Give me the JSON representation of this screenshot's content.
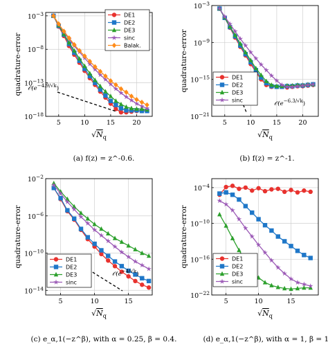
{
  "chart_data": [
    {
      "type": "line",
      "caption": "(a) f(z) = z^-0.6.",
      "xlabel": "√N_q",
      "ylabel": "quadrature-error",
      "log_y": true,
      "xlim": [
        2.5,
        23
      ],
      "ylim_exp": [
        -18,
        -2.5
      ],
      "xticks": [
        "5",
        "10",
        "15",
        "20"
      ],
      "yticks": [
        "10^-3",
        "10^-8",
        "10^-13",
        "10^-18"
      ],
      "legend": "top-right",
      "annotation": "O(e^-4.9/√k)",
      "series": [
        {
          "name": "DE1",
          "color": "#e8322e",
          "marker": "circle",
          "x": [
            4,
            5,
            6,
            7,
            8,
            9,
            10,
            11,
            12,
            13,
            14,
            15,
            16,
            17,
            18,
            19,
            20,
            21,
            22
          ],
          "y_exp": [
            -3,
            -4.6,
            -6,
            -7.5,
            -8.8,
            -10,
            -11.2,
            -12.3,
            -13.3,
            -14.3,
            -15.2,
            -16.1,
            -16.9,
            -17.4,
            -17.4,
            -17.3,
            -17.2,
            -17.2,
            -17.1
          ]
        },
        {
          "name": "DE2",
          "color": "#1f77c8",
          "marker": "square",
          "x": [
            4,
            5,
            6,
            7,
            8,
            9,
            10,
            11,
            12,
            13,
            14,
            15,
            16,
            17,
            18,
            19,
            20,
            21,
            22
          ],
          "y_exp": [
            -3,
            -4.5,
            -5.8,
            -7.2,
            -8.5,
            -9.7,
            -10.9,
            -12,
            -13,
            -14,
            -14.9,
            -15.7,
            -16.3,
            -16.8,
            -17.1,
            -17.1,
            -17.1,
            -17.2,
            -17.2
          ]
        },
        {
          "name": "DE3",
          "color": "#2ca02c",
          "marker": "triangle",
          "x": [
            4,
            5,
            6,
            7,
            8,
            9,
            10,
            11,
            12,
            13,
            14,
            15,
            16,
            17,
            18,
            19,
            20,
            21,
            22
          ],
          "y_exp": [
            -3,
            -4.4,
            -5.7,
            -7,
            -8.2,
            -9.4,
            -10.5,
            -11.6,
            -12.6,
            -13.5,
            -14.3,
            -15,
            -15.7,
            -16.2,
            -16.6,
            -16.8,
            -16.9,
            -16.9,
            -17
          ]
        },
        {
          "name": "sinc",
          "color": "#9b59b6",
          "marker": "star",
          "x": [
            4,
            5,
            6,
            7,
            8,
            9,
            10,
            11,
            12,
            13,
            14,
            15,
            16,
            17,
            18,
            19,
            20,
            21,
            22
          ],
          "y_exp": [
            -3,
            -4.3,
            -5.4,
            -6.5,
            -7.5,
            -8.4,
            -9.3,
            -10.2,
            -11,
            -11.8,
            -12.5,
            -13.2,
            -13.9,
            -14.5,
            -15.1,
            -15.6,
            -16.1,
            -16.5,
            -16.8
          ]
        },
        {
          "name": "Balak.",
          "color": "#ff8c1a",
          "marker": "diamond",
          "x": [
            4,
            5,
            6,
            7,
            8,
            9,
            10,
            11,
            12,
            13,
            14,
            15,
            16,
            17,
            18,
            19,
            20,
            21,
            22
          ],
          "y_exp": [
            -3,
            -4.2,
            -5.3,
            -6.3,
            -7.3,
            -8.2,
            -9,
            -9.8,
            -10.6,
            -11.3,
            -12,
            -12.7,
            -13.3,
            -13.9,
            -14.4,
            -15,
            -15.5,
            -15.9,
            -16.3
          ]
        }
      ]
    },
    {
      "type": "line",
      "caption": "(b) f(z) = z^-1.",
      "xlabel": "√N_q",
      "ylabel": "quadrature-error",
      "log_y": true,
      "xlim": [
        2.5,
        23
      ],
      "ylim_exp": [
        -21,
        -3
      ],
      "xticks": [
        "5",
        "10",
        "15",
        "20"
      ],
      "yticks": [
        "10^-3",
        "10^-9",
        "10^-15",
        "10^-21"
      ],
      "legend": "bottom-left",
      "annotation": "O(e^-6.3/√k)",
      "series": [
        {
          "name": "DE1",
          "color": "#e8322e",
          "marker": "circle",
          "x": [
            4,
            5,
            6,
            7,
            8,
            9,
            10,
            11,
            12,
            13,
            14,
            15,
            16,
            17,
            18,
            19,
            20,
            21,
            22
          ],
          "y_exp": [
            -3.5,
            -5,
            -6.6,
            -8.2,
            -9.7,
            -11.1,
            -12.5,
            -13.8,
            -15,
            -15.9,
            -16.2,
            -16.2,
            -16.2,
            -16.3,
            -16.2,
            -16.1,
            -16.1,
            -16,
            -15.9
          ]
        },
        {
          "name": "DE2",
          "color": "#1f77c8",
          "marker": "square",
          "x": [
            4,
            5,
            6,
            7,
            8,
            9,
            10,
            11,
            12,
            13,
            14,
            15,
            16,
            17,
            18,
            19,
            20,
            21,
            22
          ],
          "y_exp": [
            -3.5,
            -5,
            -6.5,
            -8,
            -9.5,
            -10.9,
            -12.2,
            -13.5,
            -14.7,
            -15.6,
            -16.1,
            -16.2,
            -16.2,
            -16.1,
            -16.1,
            -16,
            -16,
            -15.9,
            -15.8
          ]
        },
        {
          "name": "DE3",
          "color": "#2ca02c",
          "marker": "triangle",
          "x": [
            4,
            5,
            6,
            7,
            8,
            9,
            10,
            11,
            12,
            13,
            14,
            15,
            16,
            17,
            18,
            19,
            20,
            21,
            22
          ],
          "y_exp": [
            -3.5,
            -4.9,
            -6.4,
            -7.8,
            -9.2,
            -10.6,
            -11.9,
            -13.2,
            -14.3,
            -15.3,
            -15.9,
            -16.1,
            -16.1,
            -16,
            -16,
            -15.9,
            -15.9,
            -15.8,
            -15.8
          ]
        },
        {
          "name": "sinc",
          "color": "#9b59b6",
          "marker": "star",
          "x": [
            4,
            5,
            6,
            7,
            8,
            9,
            10,
            11,
            12,
            13,
            14,
            15,
            16,
            17,
            18,
            19,
            20,
            21,
            22
          ],
          "y_exp": [
            -3.5,
            -4.8,
            -6,
            -7.2,
            -8.4,
            -9.5,
            -10.6,
            -11.6,
            -12.6,
            -13.5,
            -14.4,
            -15.2,
            -15.9,
            -16.2,
            -16.2,
            -16.1,
            -16,
            -15.9,
            -15.8
          ]
        }
      ]
    },
    {
      "type": "line",
      "caption": "(c) e_α,1(−z^β), with α = 0.25, β = 0.4.",
      "xlabel": "√N_q",
      "ylabel": "quadrature-error",
      "log_y": true,
      "xlim": [
        2.8,
        18.5
      ],
      "ylim_exp": [
        -14.5,
        -2
      ],
      "xticks": [
        "5",
        "10",
        "15"
      ],
      "yticks": [
        "10^-2",
        "10^-6",
        "10^-10",
        "10^-14"
      ],
      "legend": "bottom-left",
      "annotation": "O(e^-4/√k)",
      "series": [
        {
          "name": "DE1",
          "color": "#e8322e",
          "marker": "circle",
          "x": [
            4,
            5,
            6,
            7,
            8,
            9,
            10,
            11,
            12,
            13,
            14,
            15,
            16,
            17,
            18
          ],
          "y_exp": [
            -3,
            -4.2,
            -5.5,
            -6.4,
            -7.5,
            -8.5,
            -9.3,
            -10.1,
            -10.8,
            -11.4,
            -12,
            -12.5,
            -13,
            -13.4,
            -13.7
          ]
        },
        {
          "name": "DE2",
          "color": "#1f77c8",
          "marker": "square",
          "x": [
            4,
            5,
            6,
            7,
            8,
            9,
            10,
            11,
            12,
            13,
            14,
            15,
            16,
            17,
            18
          ],
          "y_exp": [
            -3,
            -4.1,
            -5.4,
            -6.3,
            -7.4,
            -8.3,
            -9,
            -9.7,
            -10.3,
            -10.9,
            -11.4,
            -11.9,
            -12.3,
            -12.7,
            -13
          ]
        },
        {
          "name": "DE3",
          "color": "#2ca02c",
          "marker": "triangle",
          "x": [
            4,
            5,
            6,
            7,
            8,
            9,
            10,
            11,
            12,
            13,
            14,
            15,
            16,
            17,
            18
          ],
          "y_exp": [
            -2.5,
            -3.4,
            -4.2,
            -5,
            -5.7,
            -6.3,
            -6.9,
            -7.4,
            -7.9,
            -8.4,
            -8.8,
            -9.2,
            -9.6,
            -10,
            -10.3
          ]
        },
        {
          "name": "sinc",
          "color": "#9b59b6",
          "marker": "star",
          "x": [
            4,
            5,
            6,
            7,
            8,
            9,
            10,
            11,
            12,
            13,
            14,
            15,
            16,
            17,
            18
          ],
          "y_exp": [
            -2.7,
            -3.6,
            -4.5,
            -5.3,
            -6.1,
            -6.8,
            -7.5,
            -8.1,
            -8.7,
            -9.3,
            -9.9,
            -10.4,
            -10.9,
            -11.3,
            -11.7
          ]
        }
      ]
    },
    {
      "type": "line",
      "caption": "(d) e_α,1(−z^β), with α = 1, β = 1.",
      "xlabel": "√N_q",
      "ylabel": "quadrature-error",
      "log_y": true,
      "xlim": [
        2.8,
        19.2
      ],
      "ylim_exp": [
        -22,
        -2.5
      ],
      "xticks": [
        "5",
        "10",
        "15"
      ],
      "yticks": [
        "10^-4",
        "10^-10",
        "10^-16",
        "10^-22"
      ],
      "legend": "bottom-left",
      "series": [
        {
          "name": "DE1",
          "color": "#e8322e",
          "marker": "circle",
          "x": [
            4,
            5,
            6,
            7,
            8,
            9,
            10,
            11,
            12,
            13,
            14,
            15,
            16,
            17,
            18
          ],
          "y_exp": [
            -5.2,
            -3.9,
            -3.7,
            -4.2,
            -4,
            -4.5,
            -4.1,
            -4.6,
            -4.3,
            -4.2,
            -4.7,
            -4.4,
            -4.8,
            -4.5,
            -4.7
          ]
        },
        {
          "name": "DE2",
          "color": "#1f77c8",
          "marker": "square",
          "x": [
            4,
            5,
            6,
            7,
            8,
            9,
            10,
            11,
            12,
            13,
            14,
            15,
            16,
            17,
            18
          ],
          "y_exp": [
            -5,
            -4.8,
            -5.2,
            -6,
            -7.1,
            -8.2,
            -9.3,
            -10.3,
            -11.2,
            -12.2,
            -13,
            -13.8,
            -14.6,
            -15.3,
            -15.8
          ]
        },
        {
          "name": "DE3",
          "color": "#2ca02c",
          "marker": "triangle",
          "x": [
            4,
            5,
            6,
            7,
            8,
            9,
            10,
            11,
            12,
            13,
            14,
            15,
            16,
            17,
            18
          ],
          "y_exp": [
            -8.5,
            -10.4,
            -12.5,
            -14.5,
            -16.3,
            -17.9,
            -19.1,
            -19.9,
            -20.4,
            -20.7,
            -20.9,
            -21,
            -20.9,
            -20.8,
            -20.8
          ]
        },
        {
          "name": "sinc",
          "color": "#9b59b6",
          "marker": "star",
          "x": [
            4,
            5,
            6,
            7,
            8,
            9,
            10,
            11,
            12,
            13,
            14,
            15,
            16,
            17,
            18
          ],
          "y_exp": [
            -6.2,
            -6.8,
            -7.8,
            -9.3,
            -10.8,
            -12.2,
            -13.6,
            -14.9,
            -16.2,
            -17.4,
            -18.4,
            -19.3,
            -19.9,
            -20.2,
            -20.5
          ]
        }
      ]
    }
  ]
}
